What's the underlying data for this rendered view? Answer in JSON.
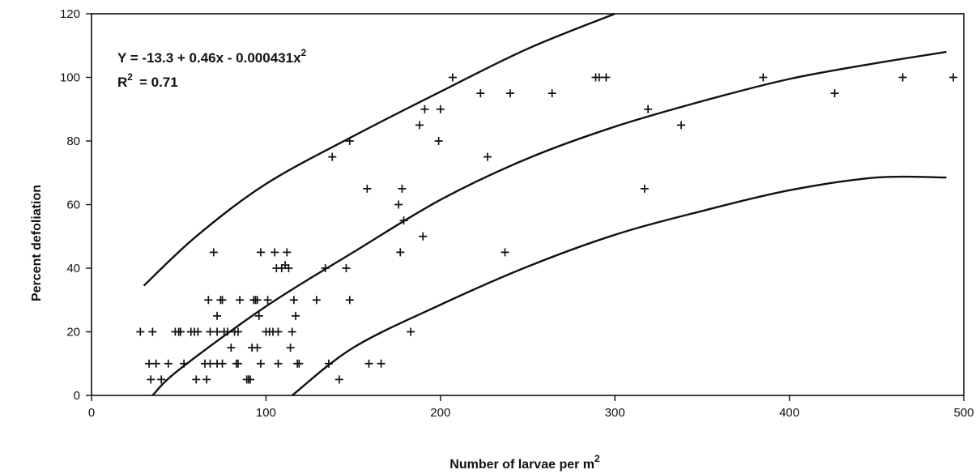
{
  "chart_data": {
    "type": "scatter",
    "title": "",
    "xlabel": "Number of larvae per m",
    "xlabel_superscript": "2",
    "ylabel": "Percent defoliation",
    "xlim": [
      0,
      500
    ],
    "ylim": [
      0,
      120
    ],
    "x_ticks": [
      "0",
      "100",
      "200",
      "300",
      "400",
      "500"
    ],
    "y_ticks": [
      "0",
      "20",
      "40",
      "60",
      "80",
      "100",
      "120"
    ],
    "grid": false,
    "legend": "none",
    "annotation": {
      "equation_main": "Y  =  -13.3  +  0.46x    -  0.000431x",
      "equation_exponent": "2",
      "r2_label": "R",
      "r2_exponent": "2",
      "r2_value": "=  0.71"
    },
    "fitted_curves": [
      {
        "role": "upper-bound",
        "x": [
          30,
          60,
          100,
          150,
          200,
          250,
          300
        ],
        "y": [
          34.5,
          50,
          66.5,
          81.5,
          95.5,
          109,
          120
        ]
      },
      {
        "role": "fit",
        "x": [
          35,
          50,
          100,
          150,
          200,
          250,
          300,
          350,
          400,
          450,
          490
        ],
        "y": [
          0,
          8,
          28,
          45,
          61.5,
          74.5,
          84.5,
          92.5,
          99.5,
          104.5,
          108
        ]
      },
      {
        "role": "lower-bound",
        "x": [
          115,
          150,
          200,
          250,
          300,
          350,
          400,
          450,
          490
        ],
        "y": [
          0,
          15,
          28.5,
          40.5,
          50.5,
          58,
          64.5,
          68.5,
          68.5
        ]
      }
    ],
    "points": [
      [
        28,
        20
      ],
      [
        35,
        20
      ],
      [
        33,
        10
      ],
      [
        37,
        10
      ],
      [
        34,
        5
      ],
      [
        40,
        5
      ],
      [
        44,
        10
      ],
      [
        48,
        20
      ],
      [
        50,
        20
      ],
      [
        51,
        20
      ],
      [
        53,
        10
      ],
      [
        57,
        20
      ],
      [
        59,
        20
      ],
      [
        61,
        20
      ],
      [
        60,
        5
      ],
      [
        65,
        10
      ],
      [
        66,
        5
      ],
      [
        67,
        30
      ],
      [
        68,
        10
      ],
      [
        68,
        20
      ],
      [
        70,
        45
      ],
      [
        72,
        25
      ],
      [
        72,
        10
      ],
      [
        72,
        20
      ],
      [
        74,
        30
      ],
      [
        75,
        10
      ],
      [
        75,
        30
      ],
      [
        76,
        20
      ],
      [
        78,
        20
      ],
      [
        80,
        15
      ],
      [
        82,
        20
      ],
      [
        83,
        10
      ],
      [
        84,
        10
      ],
      [
        84,
        20
      ],
      [
        85,
        30
      ],
      [
        89,
        5
      ],
      [
        90,
        5
      ],
      [
        91,
        5
      ],
      [
        92,
        15
      ],
      [
        93,
        30
      ],
      [
        94,
        30
      ],
      [
        95,
        30
      ],
      [
        95,
        15
      ],
      [
        96,
        25
      ],
      [
        97,
        45
      ],
      [
        97,
        10
      ],
      [
        100,
        20
      ],
      [
        101,
        30
      ],
      [
        102,
        20
      ],
      [
        104,
        20
      ],
      [
        105,
        45
      ],
      [
        106,
        40
      ],
      [
        107,
        10
      ],
      [
        107,
        20
      ],
      [
        109,
        40
      ],
      [
        111,
        41
      ],
      [
        112,
        45
      ],
      [
        113,
        40
      ],
      [
        114,
        15
      ],
      [
        115,
        20
      ],
      [
        116,
        30
      ],
      [
        117,
        25
      ],
      [
        118,
        10
      ],
      [
        119,
        10
      ],
      [
        129,
        30
      ],
      [
        134,
        40
      ],
      [
        136,
        10
      ],
      [
        138,
        75
      ],
      [
        142,
        5
      ],
      [
        146,
        40
      ],
      [
        148,
        30
      ],
      [
        148,
        80
      ],
      [
        158,
        65
      ],
      [
        159,
        10
      ],
      [
        166,
        10
      ],
      [
        176,
        60
      ],
      [
        177,
        45
      ],
      [
        178,
        65
      ],
      [
        179,
        55
      ],
      [
        183,
        20
      ],
      [
        188,
        85
      ],
      [
        190,
        50
      ],
      [
        191,
        90
      ],
      [
        199,
        80
      ],
      [
        200,
        90
      ],
      [
        207,
        100
      ],
      [
        223,
        95
      ],
      [
        227,
        75
      ],
      [
        237,
        45
      ],
      [
        240,
        95
      ],
      [
        264,
        95
      ],
      [
        289,
        100
      ],
      [
        291,
        100
      ],
      [
        295,
        100
      ],
      [
        317,
        65
      ],
      [
        319,
        90
      ],
      [
        338,
        85
      ],
      [
        385,
        100
      ],
      [
        426,
        95
      ],
      [
        465,
        100
      ],
      [
        494,
        100
      ]
    ]
  }
}
